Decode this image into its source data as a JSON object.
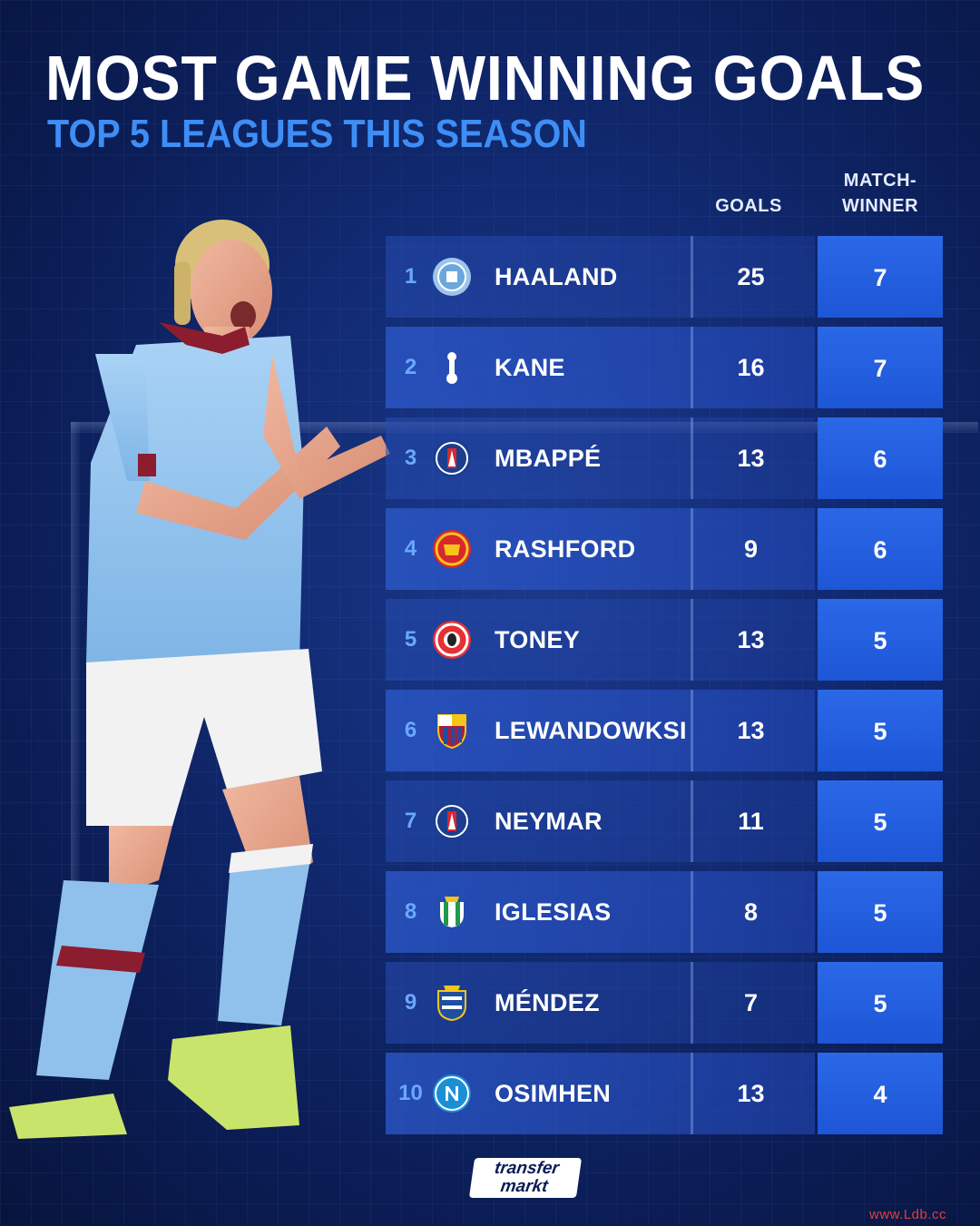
{
  "title": "MOST GAME WINNING GOALS",
  "subtitle": "TOP 5 LEAGUES THIS SEASON",
  "columns": {
    "goals": "GOALS",
    "match_winner_line1": "MATCH-",
    "match_winner_line2": "WINNER"
  },
  "rows": [
    {
      "rank": "1",
      "name": "HAALAND",
      "goals": "25",
      "match_winner": "7",
      "club_icon": "man-city-crest-icon",
      "crest_color": "#9cc5ea"
    },
    {
      "rank": "2",
      "name": "KANE",
      "goals": "16",
      "match_winner": "7",
      "club_icon": "tottenham-crest-icon",
      "crest_color": "#ffffff"
    },
    {
      "rank": "3",
      "name": "MBAPPÉ",
      "goals": "13",
      "match_winner": "6",
      "club_icon": "psg-crest-icon",
      "crest_color": "#1b3e8f"
    },
    {
      "rank": "4",
      "name": "RASHFORD",
      "goals": "9",
      "match_winner": "6",
      "club_icon": "man-united-crest-icon",
      "crest_color": "#d8272f"
    },
    {
      "rank": "5",
      "name": "TONEY",
      "goals": "13",
      "match_winner": "5",
      "club_icon": "brentford-crest-icon",
      "crest_color": "#e53034"
    },
    {
      "rank": "6",
      "name": "LEWANDOWKSI",
      "goals": "13",
      "match_winner": "5",
      "club_icon": "barcelona-crest-icon",
      "crest_color": "#a41e45"
    },
    {
      "rank": "7",
      "name": "NEYMAR",
      "goals": "11",
      "match_winner": "5",
      "club_icon": "psg-crest-icon",
      "crest_color": "#1b3e8f"
    },
    {
      "rank": "8",
      "name": "IGLESIAS",
      "goals": "8",
      "match_winner": "5",
      "club_icon": "real-betis-crest-icon",
      "crest_color": "#1e9a4a"
    },
    {
      "rank": "9",
      "name": "MÉNDEZ",
      "goals": "7",
      "match_winner": "5",
      "club_icon": "real-sociedad-crest-icon",
      "crest_color": "#1e4fa0"
    },
    {
      "rank": "10",
      "name": "OSIMHEN",
      "goals": "13",
      "match_winner": "4",
      "club_icon": "napoli-crest-icon",
      "crest_color": "#1a8fd6"
    }
  ],
  "logo": {
    "line1": "transfer",
    "line2": "markt"
  },
  "watermark": "www.Ldb.cc",
  "colors": {
    "accent_blue": "#3e8ef5",
    "rank_blue": "#6aa8ff",
    "match_winner_bg": "#2a68e8"
  }
}
